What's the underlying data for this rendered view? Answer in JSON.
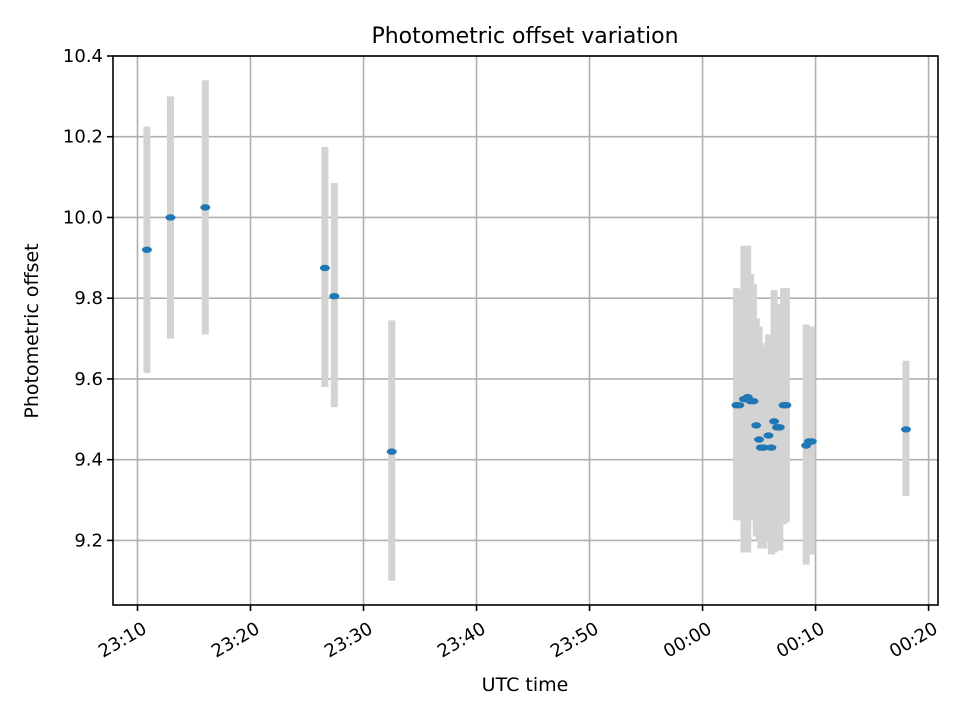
{
  "chart_data": {
    "type": "scatter",
    "title": "Photometric offset variation",
    "xlabel": "UTC time",
    "ylabel": "Photometric offset",
    "xlim": [
      "23:07:50",
      "00:20:50"
    ],
    "ylim": [
      9.04,
      10.4
    ],
    "grid": true,
    "x_ticks": [
      "23:10",
      "23:20",
      "23:30",
      "23:40",
      "23:50",
      "00:00",
      "00:10",
      "00:20"
    ],
    "y_ticks": [
      "9.2",
      "9.4",
      "9.6",
      "9.8",
      "10.0",
      "10.2",
      "10.4"
    ],
    "errorbar_color": "#d3d3d3",
    "marker_color": "#1f77b4",
    "series": [
      {
        "points": [
          {
            "x": "23:10:50",
            "y": 9.92,
            "ylo": 9.615,
            "yhi": 10.225
          },
          {
            "x": "23:12:55",
            "y": 10.0,
            "ylo": 9.7,
            "yhi": 10.3
          },
          {
            "x": "23:16:00",
            "y": 10.025,
            "ylo": 9.71,
            "yhi": 10.34
          },
          {
            "x": "23:26:35",
            "y": 9.875,
            "ylo": 9.58,
            "yhi": 10.175
          },
          {
            "x": "23:27:25",
            "y": 9.805,
            "ylo": 9.53,
            "yhi": 10.085
          },
          {
            "x": "23:32:30",
            "y": 9.42,
            "ylo": 9.1,
            "yhi": 9.745
          },
          {
            "x": "00:03:00",
            "y": 9.535,
            "ylo": 9.25,
            "yhi": 9.825
          },
          {
            "x": "00:03:15",
            "y": 9.535,
            "ylo": 9.25,
            "yhi": 9.82
          },
          {
            "x": "00:03:40",
            "y": 9.55,
            "ylo": 9.17,
            "yhi": 9.93
          },
          {
            "x": "00:04:00",
            "y": 9.555,
            "ylo": 9.17,
            "yhi": 9.93
          },
          {
            "x": "00:04:15",
            "y": 9.545,
            "ylo": 9.26,
            "yhi": 9.86
          },
          {
            "x": "00:04:30",
            "y": 9.545,
            "ylo": 9.25,
            "yhi": 9.835
          },
          {
            "x": "00:04:45",
            "y": 9.485,
            "ylo": 9.21,
            "yhi": 9.75
          },
          {
            "x": "00:05:00",
            "y": 9.45,
            "ylo": 9.2,
            "yhi": 9.73
          },
          {
            "x": "00:05:10",
            "y": 9.43,
            "ylo": 9.18,
            "yhi": 9.69
          },
          {
            "x": "00:05:25",
            "y": 9.43,
            "ylo": 9.18,
            "yhi": 9.68
          },
          {
            "x": "00:05:50",
            "y": 9.46,
            "ylo": 9.2,
            "yhi": 9.71
          },
          {
            "x": "00:06:05",
            "y": 9.43,
            "ylo": 9.165,
            "yhi": 9.7
          },
          {
            "x": "00:06:20",
            "y": 9.495,
            "ylo": 9.17,
            "yhi": 9.82
          },
          {
            "x": "00:06:35",
            "y": 9.48,
            "ylo": 9.18,
            "yhi": 9.78
          },
          {
            "x": "00:06:50",
            "y": 9.48,
            "ylo": 9.175,
            "yhi": 9.785
          },
          {
            "x": "00:07:10",
            "y": 9.535,
            "ylo": 9.24,
            "yhi": 9.825
          },
          {
            "x": "00:07:25",
            "y": 9.535,
            "ylo": 9.245,
            "yhi": 9.825
          },
          {
            "x": "00:09:10",
            "y": 9.435,
            "ylo": 9.14,
            "yhi": 9.735
          },
          {
            "x": "00:09:25",
            "y": 9.445,
            "ylo": 9.165,
            "yhi": 9.73
          },
          {
            "x": "00:09:40",
            "y": 9.445,
            "ylo": 9.165,
            "yhi": 9.73
          },
          {
            "x": "00:18:00",
            "y": 9.475,
            "ylo": 9.31,
            "yhi": 9.645
          }
        ]
      }
    ]
  }
}
